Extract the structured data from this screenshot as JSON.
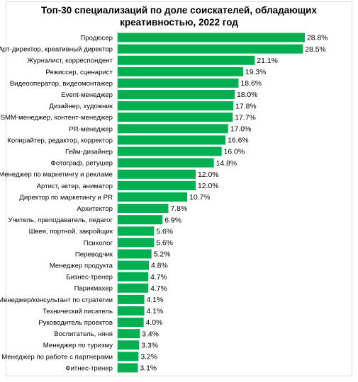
{
  "chart_data": {
    "type": "bar",
    "orientation": "horizontal",
    "title_lines": [
      "Топ-30 специализаций по доле соискателей, обладающих",
      "креативностью, 2022 год"
    ],
    "categories": [
      "Продюсер",
      "Арт-директор, креативный директор",
      "Журналист, корреспондент",
      "Режиссер, сценарист",
      "Видеооператор, видеомонтажер",
      "Event-менеджер",
      "Дизайнер, художник",
      "SMM-менеджер, контент-менеджер",
      "PR-менеджер",
      "Копирайтер, редактор, корректор",
      "Гейм-дизайнер",
      "Фотограф, ретушер",
      "Менеджер по маркетингу и рекламе",
      "Артист, актер, аниматор",
      "Директор по маркетингу и PR",
      "Архитектор",
      "Учитель, преподаватель, педагог",
      "Швея, портной, закройщик",
      "Психолог",
      "Переводчик",
      "Менеджер продукта",
      "Бизнес-тренер",
      "Парикмахер",
      "Менеджер/консультант по стратегии",
      "Технический писатель",
      "Руководитель проектов",
      "Воспитатель, няня",
      "Менеджер по туризму",
      "Менеджер по работе с партнерами",
      "Фитнес-тренер"
    ],
    "values": [
      28.8,
      28.5,
      21.1,
      19.3,
      18.6,
      18.0,
      17.8,
      17.7,
      17.0,
      16.6,
      16.0,
      14.8,
      12.0,
      12.0,
      10.7,
      7.8,
      6.9,
      5.6,
      5.6,
      5.2,
      4.8,
      4.7,
      4.7,
      4.1,
      4.1,
      4.0,
      3.4,
      3.3,
      3.2,
      3.1
    ],
    "value_labels": [
      "28.8%",
      "28.5%",
      "21.1%",
      "19.3%",
      "18.6%",
      "18.0%",
      "17.8%",
      "17.7%",
      "17.0%",
      "16.6%",
      "16.0%",
      "14.8%",
      "12.0%",
      "12.0%",
      "10.7%",
      "7.8%",
      "6.9%",
      "5.6%",
      "5.6%",
      "5.2%",
      "4.8%",
      "4.7%",
      "4.7%",
      "4.1%",
      "4.1%",
      "4.0%",
      "3.4%",
      "3.3%",
      "3.2%",
      "3.1%"
    ],
    "unit": "%",
    "xlim": [
      0,
      28.8
    ],
    "grid": false,
    "legend": "none",
    "bar_color": "#00b050",
    "axis_color": "#bfbfbf"
  }
}
